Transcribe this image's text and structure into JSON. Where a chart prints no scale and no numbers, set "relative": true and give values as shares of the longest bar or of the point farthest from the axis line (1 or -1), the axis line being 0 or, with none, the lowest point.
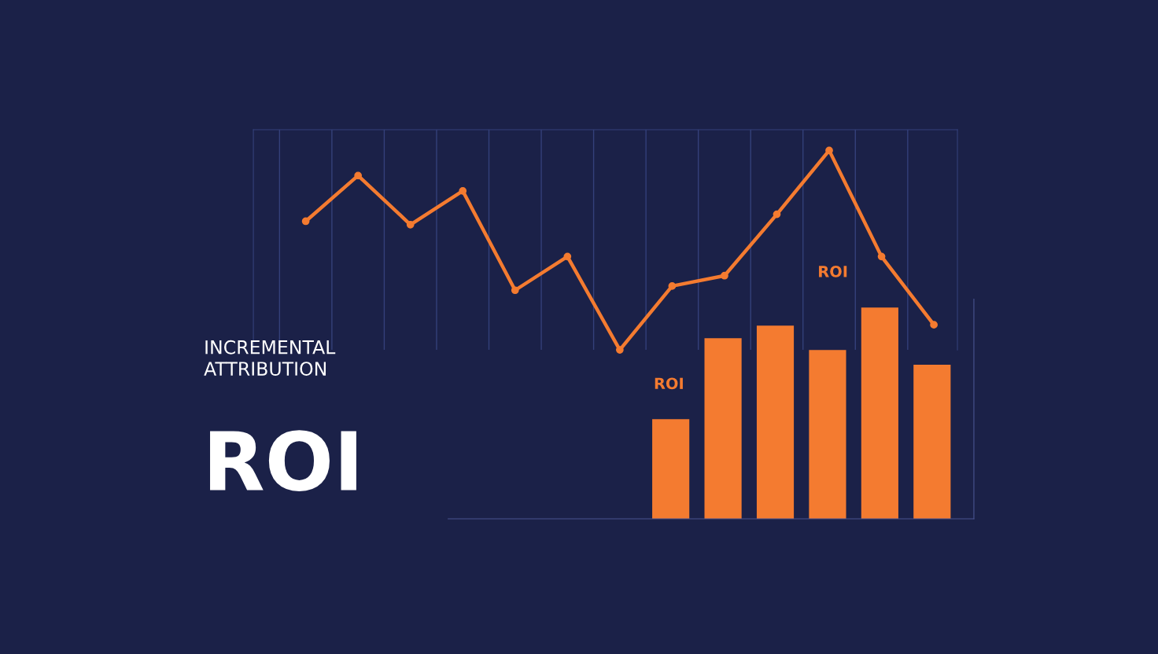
{
  "chart_data": [
    {
      "type": "line",
      "title": "INCREMENTAL\nATTRIBUTION",
      "subtitle": "ROI",
      "relative": true,
      "grid": "x",
      "marker": "circle",
      "line_style": "solid",
      "categories": [
        null,
        null,
        null,
        null,
        null,
        null,
        null,
        null,
        null,
        null,
        null,
        null,
        null
      ],
      "series": [
        {
          "color": "#f47b30",
          "values": [
            0.645,
            0.874,
            0.628,
            0.797,
            0.299,
            0.468,
            0,
            0.32,
            0.372,
            0.68,
            1,
            0.468,
            0.126
          ]
        }
      ],
      "annotations": [
        "ROI"
      ]
    },
    {
      "type": "bar",
      "relative": true,
      "categories": [
        null,
        null,
        null,
        null,
        null,
        null
      ],
      "series": [
        {
          "color": "#f47b30",
          "values": [
            0.472,
            0.855,
            0.914,
            0.799,
            1,
            0.729
          ]
        }
      ],
      "annotations": [
        "ROI"
      ]
    }
  ]
}
